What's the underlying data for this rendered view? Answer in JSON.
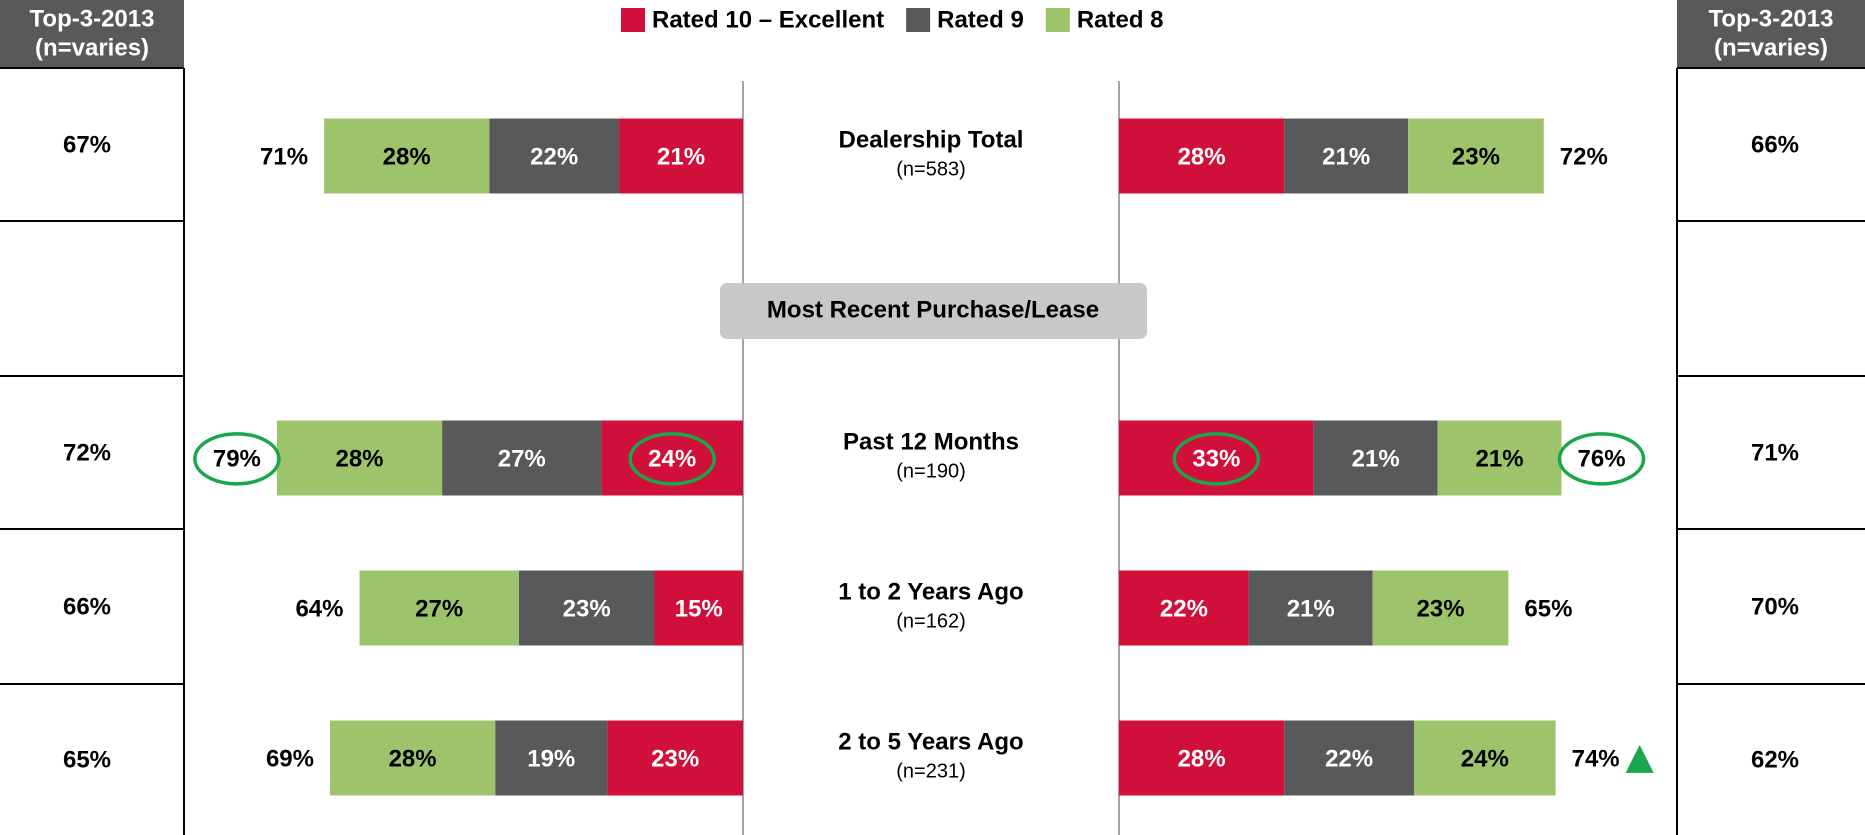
{
  "chart_data": {
    "type": "bar",
    "orientation": "horizontal",
    "stacked": true,
    "mirrored": true,
    "legend": [
      {
        "name": "Rated 10 – Excellent",
        "color": "#d0103a"
      },
      {
        "name": "Rated 9",
        "color": "#58595b"
      },
      {
        "name": "Rated 8",
        "color": "#9dc46a"
      }
    ],
    "categories": [
      "Dealership Total",
      "Past 12 Months",
      "1 to 2 Years Ago",
      "2 to 5 Years Ago"
    ],
    "category_notes": [
      "(n=583)",
      "(n=190)",
      "(n=162)",
      "(n=231)"
    ],
    "section_label": "Most Recent Purchase/Lease",
    "top3_header": [
      "Top-3-2013",
      "(n=varies)"
    ],
    "highlight_color": "#1aa64a",
    "circled": [
      "chart_data.panels.0.totals.1",
      "chart_data.panels.0.series.0.values.1",
      "chart_data.panels.1.series.0.values.1",
      "chart_data.panels.1.totals.1"
    ],
    "significant_up": [
      "chart_data.panels.1.totals.3"
    ],
    "panels": [
      {
        "side": "left",
        "series": [
          {
            "values": [
              21,
              24,
              15,
              23
            ],
            "value_labels": [
              "21%",
              "24%",
              "15%",
              "23%"
            ]
          },
          {
            "values": [
              22,
              27,
              23,
              19
            ],
            "value_labels": [
              "22%",
              "27%",
              "23%",
              "19%"
            ]
          },
          {
            "values": [
              28,
              28,
              27,
              28
            ],
            "value_labels": [
              "28%",
              "28%",
              "27%",
              "28%"
            ]
          }
        ],
        "totals": [
          71,
          79,
          64,
          69
        ],
        "total_labels": [
          "71%",
          "79%",
          "64%",
          "69%"
        ],
        "top3": [
          67,
          72,
          66,
          65
        ],
        "top3_labels": [
          "67%",
          "72%",
          "66%",
          "65%"
        ]
      },
      {
        "side": "right",
        "series": [
          {
            "values": [
              28,
              33,
              22,
              28
            ],
            "value_labels": [
              "28%",
              "33%",
              "22%",
              "28%"
            ]
          },
          {
            "values": [
              21,
              21,
              21,
              22
            ],
            "value_labels": [
              "21%",
              "21%",
              "21%",
              "22%"
            ]
          },
          {
            "values": [
              23,
              21,
              23,
              24
            ],
            "value_labels": [
              "23%",
              "21%",
              "23%",
              "24%"
            ]
          }
        ],
        "totals": [
          72,
          76,
          65,
          74
        ],
        "total_labels": [
          "72%",
          "76%",
          "65%",
          "74%"
        ],
        "top3": [
          66,
          71,
          70,
          62
        ],
        "top3_labels": [
          "66%",
          "71%",
          "70%",
          "62%"
        ]
      }
    ]
  }
}
